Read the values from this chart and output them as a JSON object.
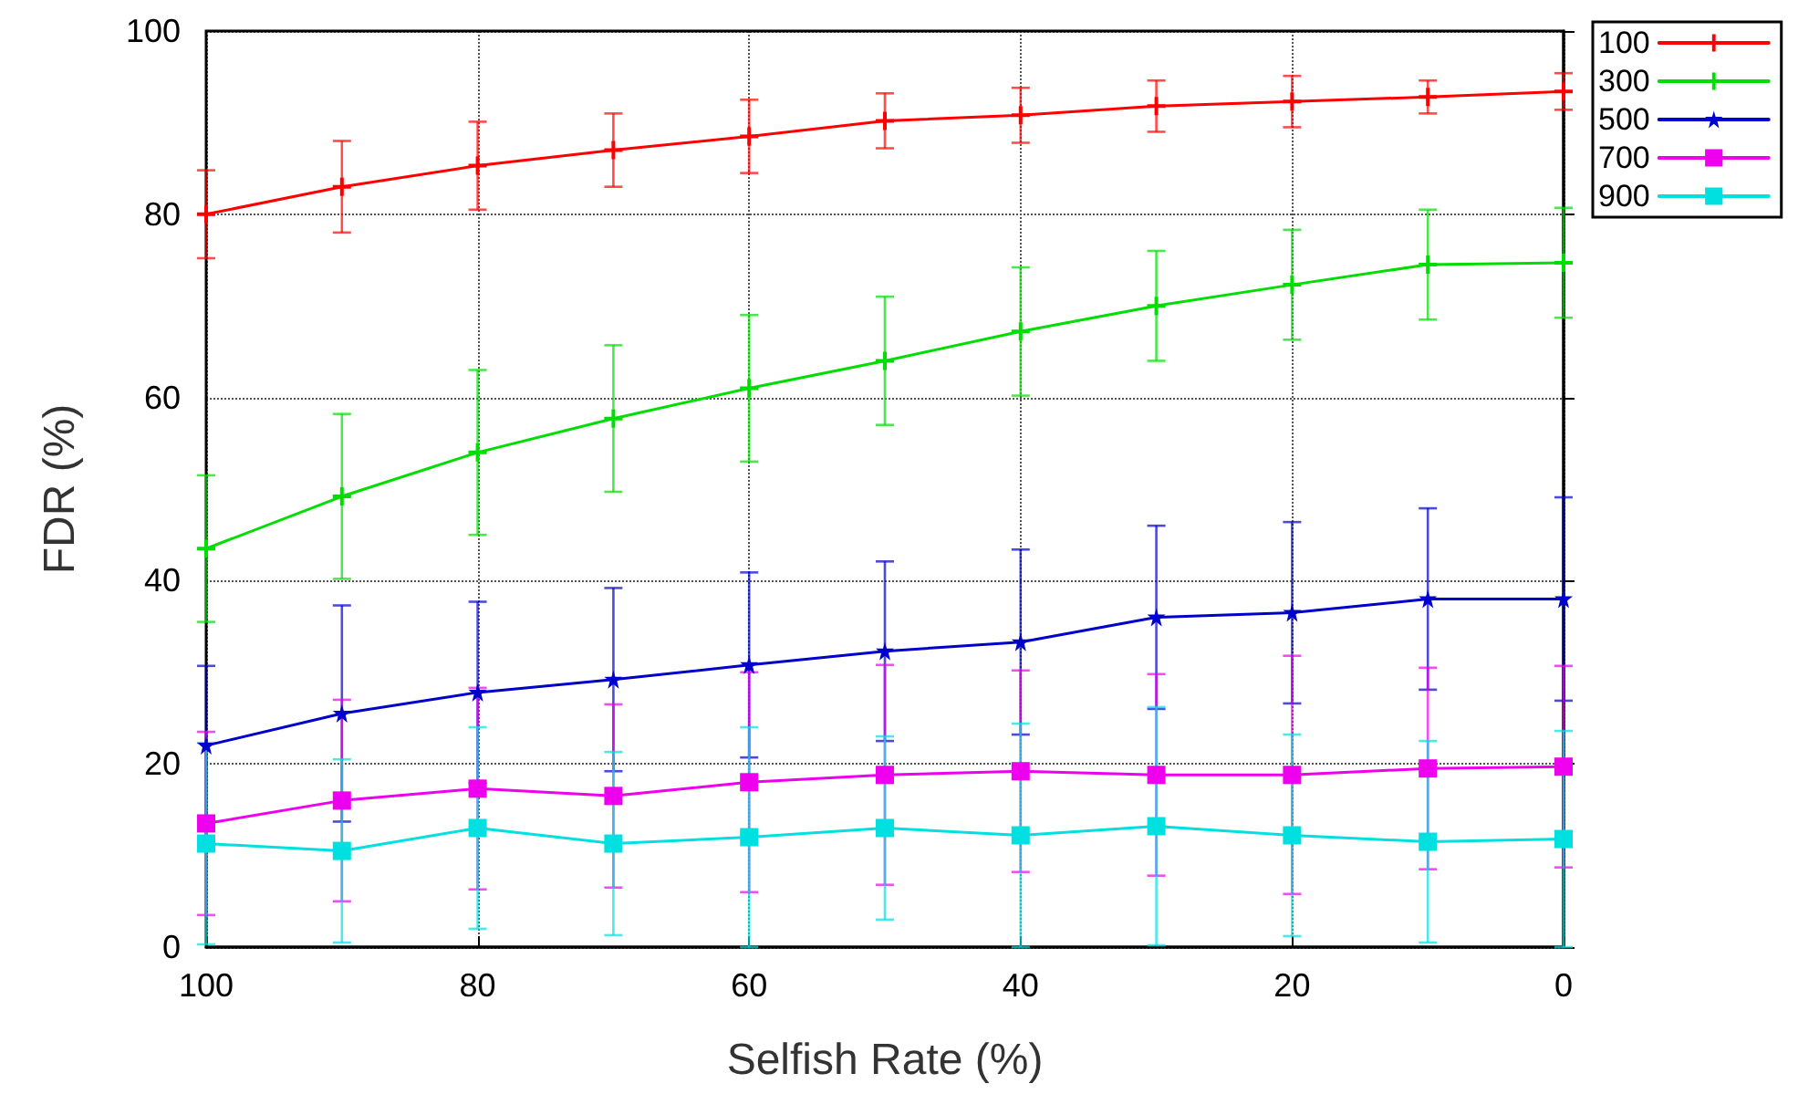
{
  "chart_data": {
    "type": "line",
    "xlabel": "Selfish Rate (%)",
    "ylabel": "FDR (%)",
    "x": [
      100,
      90,
      80,
      70,
      60,
      50,
      40,
      30,
      20,
      10,
      0
    ],
    "xlim": [
      100,
      0
    ],
    "xticks": [
      100,
      80,
      60,
      40,
      20,
      0
    ],
    "ylim": [
      0,
      100
    ],
    "yticks": [
      0,
      20,
      40,
      60,
      80,
      100
    ],
    "grid": true,
    "legend": "top right",
    "line_style": "solid",
    "series": [
      {
        "name": "100",
        "color": "#ff0000",
        "marker": "cross",
        "values": [
          80,
          83,
          85.3,
          87,
          88.5,
          90.2,
          90.8,
          91.8,
          92.3,
          92.8,
          93.4
        ],
        "errors": [
          4.8,
          5,
          4.8,
          4,
          4,
          3,
          3,
          2.8,
          2.8,
          1.8,
          2
        ]
      },
      {
        "name": "300",
        "color": "#00dd00",
        "marker": "cross",
        "values": [
          43.5,
          49.2,
          54,
          57.7,
          61,
          64,
          67.2,
          70,
          72.3,
          74.5,
          74.7
        ],
        "errors": [
          8,
          9,
          9,
          8,
          8,
          7,
          7,
          6,
          6,
          6,
          6
        ]
      },
      {
        "name": "500",
        "color": "#0000cc",
        "marker": "star",
        "values": [
          22,
          25.5,
          27.8,
          29.2,
          30.8,
          32.3,
          33.3,
          36,
          36.5,
          38,
          38
        ],
        "errors": [
          8.7,
          11.8,
          9.9,
          10,
          10.1,
          9.8,
          10.1,
          10,
          9.9,
          9.9,
          11.1
        ]
      },
      {
        "name": "700",
        "color": "#ee00ee",
        "marker": "square",
        "values": [
          13.5,
          16,
          17.3,
          16.5,
          18,
          18.8,
          19.2,
          18.8,
          18.8,
          19.5,
          19.7
        ],
        "errors": [
          10,
          11,
          11,
          10,
          12,
          12,
          11,
          11,
          13,
          11,
          11
        ]
      },
      {
        "name": "900",
        "color": "#00e0e0",
        "marker": "square",
        "values": [
          11.3,
          10.5,
          13,
          11.3,
          12,
          13,
          12.2,
          13.2,
          12.2,
          11.5,
          11.8
        ],
        "errors": [
          11,
          10,
          11,
          10,
          12,
          10,
          12.2,
          13,
          11,
          11,
          11.8
        ]
      }
    ]
  }
}
